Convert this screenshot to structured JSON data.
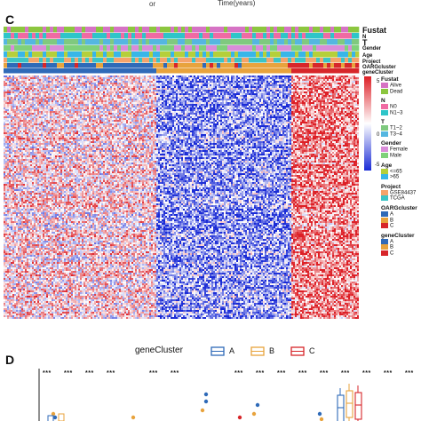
{
  "top": {
    "fragment": "or",
    "xlabel": "Time(years)"
  },
  "panel_c": {
    "label": "C",
    "tracks": [
      "Fustat",
      "N",
      "T",
      "Gender",
      "Age",
      "Project",
      "OARGcluster",
      "geneCluster"
    ],
    "colorbar": {
      "ticks": [
        "5",
        "0",
        "-5"
      ],
      "colors": [
        "#dd1f26",
        "#ffffff",
        "#1a2bd6"
      ]
    },
    "legend": [
      {
        "title": "Fustat",
        "items": [
          {
            "label": "Alive",
            "color": "#d673c4"
          },
          {
            "label": "Dead",
            "color": "#8cc63f"
          }
        ]
      },
      {
        "title": "N",
        "items": [
          {
            "label": "N0",
            "color": "#f06aa3"
          },
          {
            "label": "N1~3",
            "color": "#2ec5c9"
          }
        ]
      },
      {
        "title": "T",
        "items": [
          {
            "label": "T1~2",
            "color": "#7fc97f"
          },
          {
            "label": "T3~4",
            "color": "#55b6e0"
          }
        ]
      },
      {
        "title": "Gender",
        "items": [
          {
            "label": "Female",
            "color": "#d98cd9"
          },
          {
            "label": "Male",
            "color": "#7fd17a"
          }
        ]
      },
      {
        "title": "Age",
        "items": [
          {
            "label": "<=65",
            "color": "#b5cf3a"
          },
          {
            "label": ">65",
            "color": "#38b6e8"
          }
        ]
      },
      {
        "title": "Project",
        "items": [
          {
            "label": "GSE84437",
            "color": "#f5a36b"
          },
          {
            "label": "TCGA",
            "color": "#3cc4c6"
          }
        ]
      },
      {
        "title": "OARGcluster",
        "items": [
          {
            "label": "A",
            "color": "#2f6ab8"
          },
          {
            "label": "B",
            "color": "#e8a33d"
          },
          {
            "label": "C",
            "color": "#d7262a"
          }
        ]
      },
      {
        "title": "geneCluster",
        "items": [
          {
            "label": "A",
            "color": "#2f6ab8"
          },
          {
            "label": "B",
            "color": "#e8a33d"
          },
          {
            "label": "C",
            "color": "#d7262a"
          }
        ]
      }
    ]
  },
  "panel_d": {
    "label": "D",
    "legend_title": "geneCluster",
    "legend_items": [
      {
        "label": "A",
        "color": "#2f6ab8"
      },
      {
        "label": "B",
        "color": "#e8a33d"
      },
      {
        "label": "C",
        "color": "#d7262a"
      }
    ],
    "significance": [
      "***",
      "***",
      "***",
      "***",
      "***",
      "***",
      "***",
      "***",
      "***",
      "***",
      "***",
      "***",
      "***",
      "***",
      "***"
    ]
  },
  "chart_data": {
    "type": "heatmap",
    "title": "",
    "colorbar_range": [
      -5,
      5
    ],
    "column_groups": [
      {
        "geneCluster": "A",
        "fraction": 0.43
      },
      {
        "geneCluster": "B",
        "fraction": 0.38
      },
      {
        "geneCluster": "C",
        "fraction": 0.19
      }
    ],
    "group_mean_expression": {
      "A": 0.8,
      "B": -2.2,
      "C": 2.8
    },
    "annotation_tracks": [
      "Fustat",
      "N",
      "T",
      "Gender",
      "Age",
      "Project",
      "OARGcluster",
      "geneCluster"
    ]
  }
}
